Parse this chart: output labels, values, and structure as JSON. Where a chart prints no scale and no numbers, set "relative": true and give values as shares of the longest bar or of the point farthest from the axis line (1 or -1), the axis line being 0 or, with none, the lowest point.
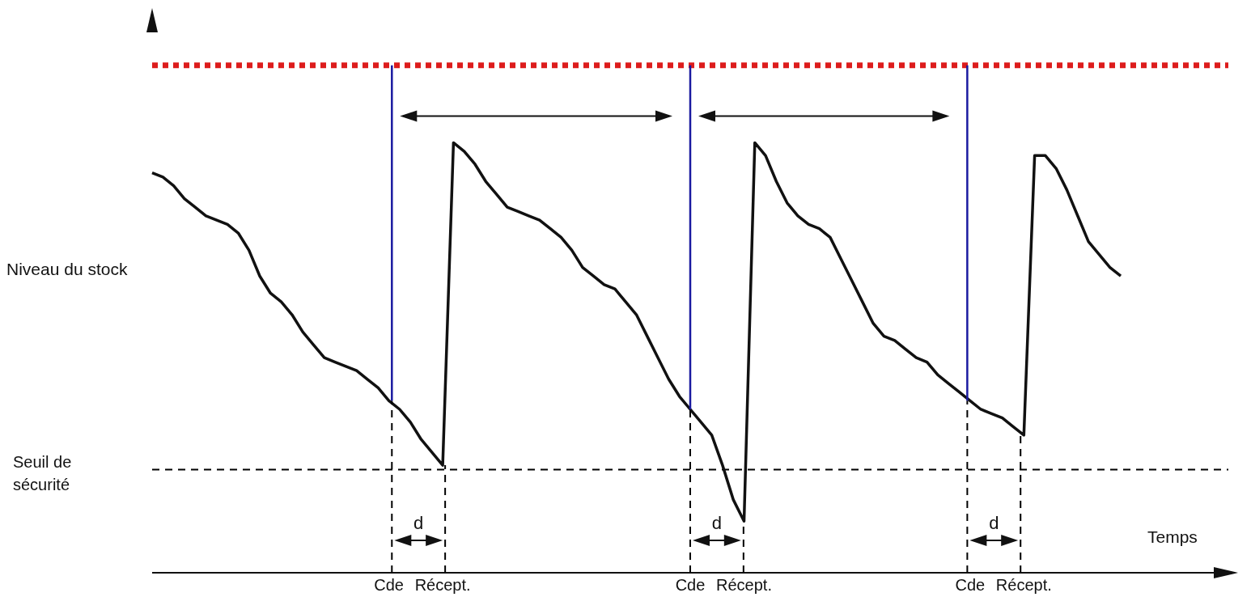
{
  "chart_data": {
    "type": "line",
    "relative": true,
    "xlabel": "Temps",
    "ylabel": "Niveau du stock",
    "categories": [
      null,
      null,
      null,
      null,
      null,
      null,
      null,
      null,
      null,
      null,
      null,
      null,
      null,
      null,
      null,
      null,
      null,
      null,
      null,
      null,
      null,
      null,
      "Cde",
      null,
      null,
      null,
      null,
      "Récept.",
      null,
      null,
      null,
      null,
      null,
      null,
      null,
      null,
      null,
      null,
      null,
      null,
      null,
      null,
      null,
      null,
      null,
      null,
      null,
      null,
      null,
      null,
      "Cde",
      null,
      null,
      null,
      null,
      "Récept.",
      null,
      null,
      null,
      null,
      null,
      null,
      null,
      null,
      null,
      null,
      null,
      null,
      null,
      null,
      null,
      null,
      null,
      null,
      null,
      null,
      "Cde",
      null,
      null,
      null,
      null,
      "Récept.",
      null,
      null,
      null,
      null,
      null,
      null,
      null,
      null,
      null,
      null,
      null,
      null,
      null,
      null,
      null,
      null,
      null,
      null,
      null
    ],
    "series": [
      {
        "color": "#111111",
        "values": [
          0.93,
          0.92,
          0.9,
          0.87,
          0.85,
          0.83,
          0.82,
          0.81,
          0.79,
          0.75,
          0.69,
          0.65,
          0.63,
          0.6,
          0.56,
          0.53,
          0.5,
          0.49,
          0.48,
          0.47,
          0.45,
          0.43,
          0.4,
          0.38,
          0.35,
          0.31,
          0.28,
          0.25,
          1.0,
          0.98,
          0.95,
          0.91,
          0.88,
          0.85,
          0.84,
          0.83,
          0.82,
          0.8,
          0.78,
          0.75,
          0.71,
          0.69,
          0.67,
          0.66,
          0.63,
          0.6,
          0.55,
          0.5,
          0.45,
          0.41,
          0.38,
          0.35,
          0.32,
          0.25,
          0.17,
          0.12,
          1.0,
          0.97,
          0.91,
          0.86,
          0.83,
          0.81,
          0.8,
          0.78,
          0.73,
          0.68,
          0.63,
          0.58,
          0.55,
          0.54,
          0.52,
          0.5,
          0.49,
          0.46,
          0.44,
          0.42,
          0.4,
          0.38,
          0.37,
          0.36,
          0.34,
          0.32,
          0.97,
          0.97,
          0.94,
          0.89,
          0.83,
          0.77,
          0.74,
          0.71,
          0.69,
          null,
          null,
          null,
          null,
          null,
          null,
          null,
          null,
          null,
          null
        ]
      }
    ],
    "ref_lines": [
      {
        "axis": "y",
        "value": 0.24,
        "label": "Seuil de sécurité",
        "color": "#000000",
        "line_style": "dashed"
      },
      {
        "axis": "y",
        "value": 1.18,
        "color": "#dd1c1c",
        "line_style": "dotted"
      }
    ],
    "annotations": [
      "d",
      "d",
      "d"
    ]
  }
}
